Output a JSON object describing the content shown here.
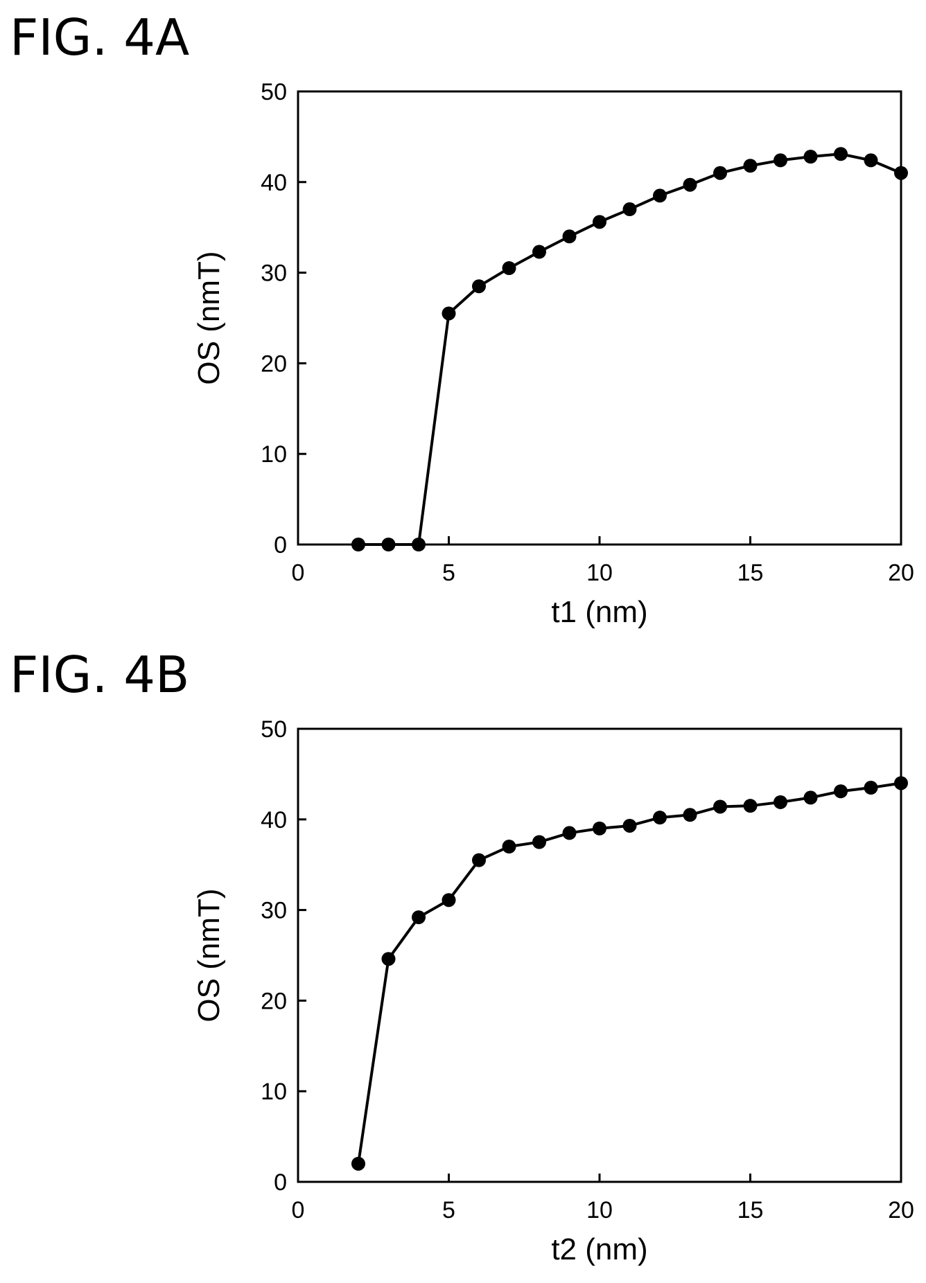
{
  "figures": [
    {
      "label": "FIG. 4A"
    },
    {
      "label": "FIG. 4B"
    }
  ],
  "chart_data": [
    {
      "type": "line",
      "title": "",
      "xlabel": "t1 (nm)",
      "ylabel": "OS (nmT)",
      "xlim": [
        0,
        20
      ],
      "ylim": [
        0,
        50
      ],
      "xticks": [
        0,
        5,
        10,
        15,
        20
      ],
      "yticks": [
        0,
        10,
        20,
        30,
        40,
        50
      ],
      "grid": false,
      "markers": "filled-circle",
      "series": [
        {
          "x": [
            2,
            3,
            4,
            5,
            6,
            7,
            8,
            9,
            10,
            11,
            12,
            13,
            14,
            15,
            16,
            17,
            18,
            19,
            20
          ],
          "values": [
            0,
            0,
            0,
            25.5,
            28.5,
            30.5,
            32.3,
            34,
            35.6,
            37,
            38.5,
            39.7,
            41,
            41.8,
            42.4,
            42.8,
            43.1,
            42.4,
            41
          ]
        }
      ]
    },
    {
      "type": "line",
      "title": "",
      "xlabel": "t2 (nm)",
      "ylabel": "OS (nmT)",
      "xlim": [
        0,
        20
      ],
      "ylim": [
        0,
        50
      ],
      "xticks": [
        0,
        5,
        10,
        15,
        20
      ],
      "yticks": [
        0,
        10,
        20,
        30,
        40,
        50
      ],
      "grid": false,
      "markers": "filled-circle",
      "series": [
        {
          "x": [
            2,
            3,
            4,
            5,
            6,
            7,
            8,
            9,
            10,
            11,
            12,
            13,
            14,
            15,
            16,
            17,
            18,
            19,
            20
          ],
          "values": [
            2,
            24.6,
            29.2,
            31.1,
            35.5,
            37,
            37.5,
            38.5,
            39,
            39.3,
            40.2,
            40.5,
            41.4,
            41.5,
            41.9,
            42.4,
            43.1,
            43.5,
            44
          ]
        }
      ]
    }
  ]
}
